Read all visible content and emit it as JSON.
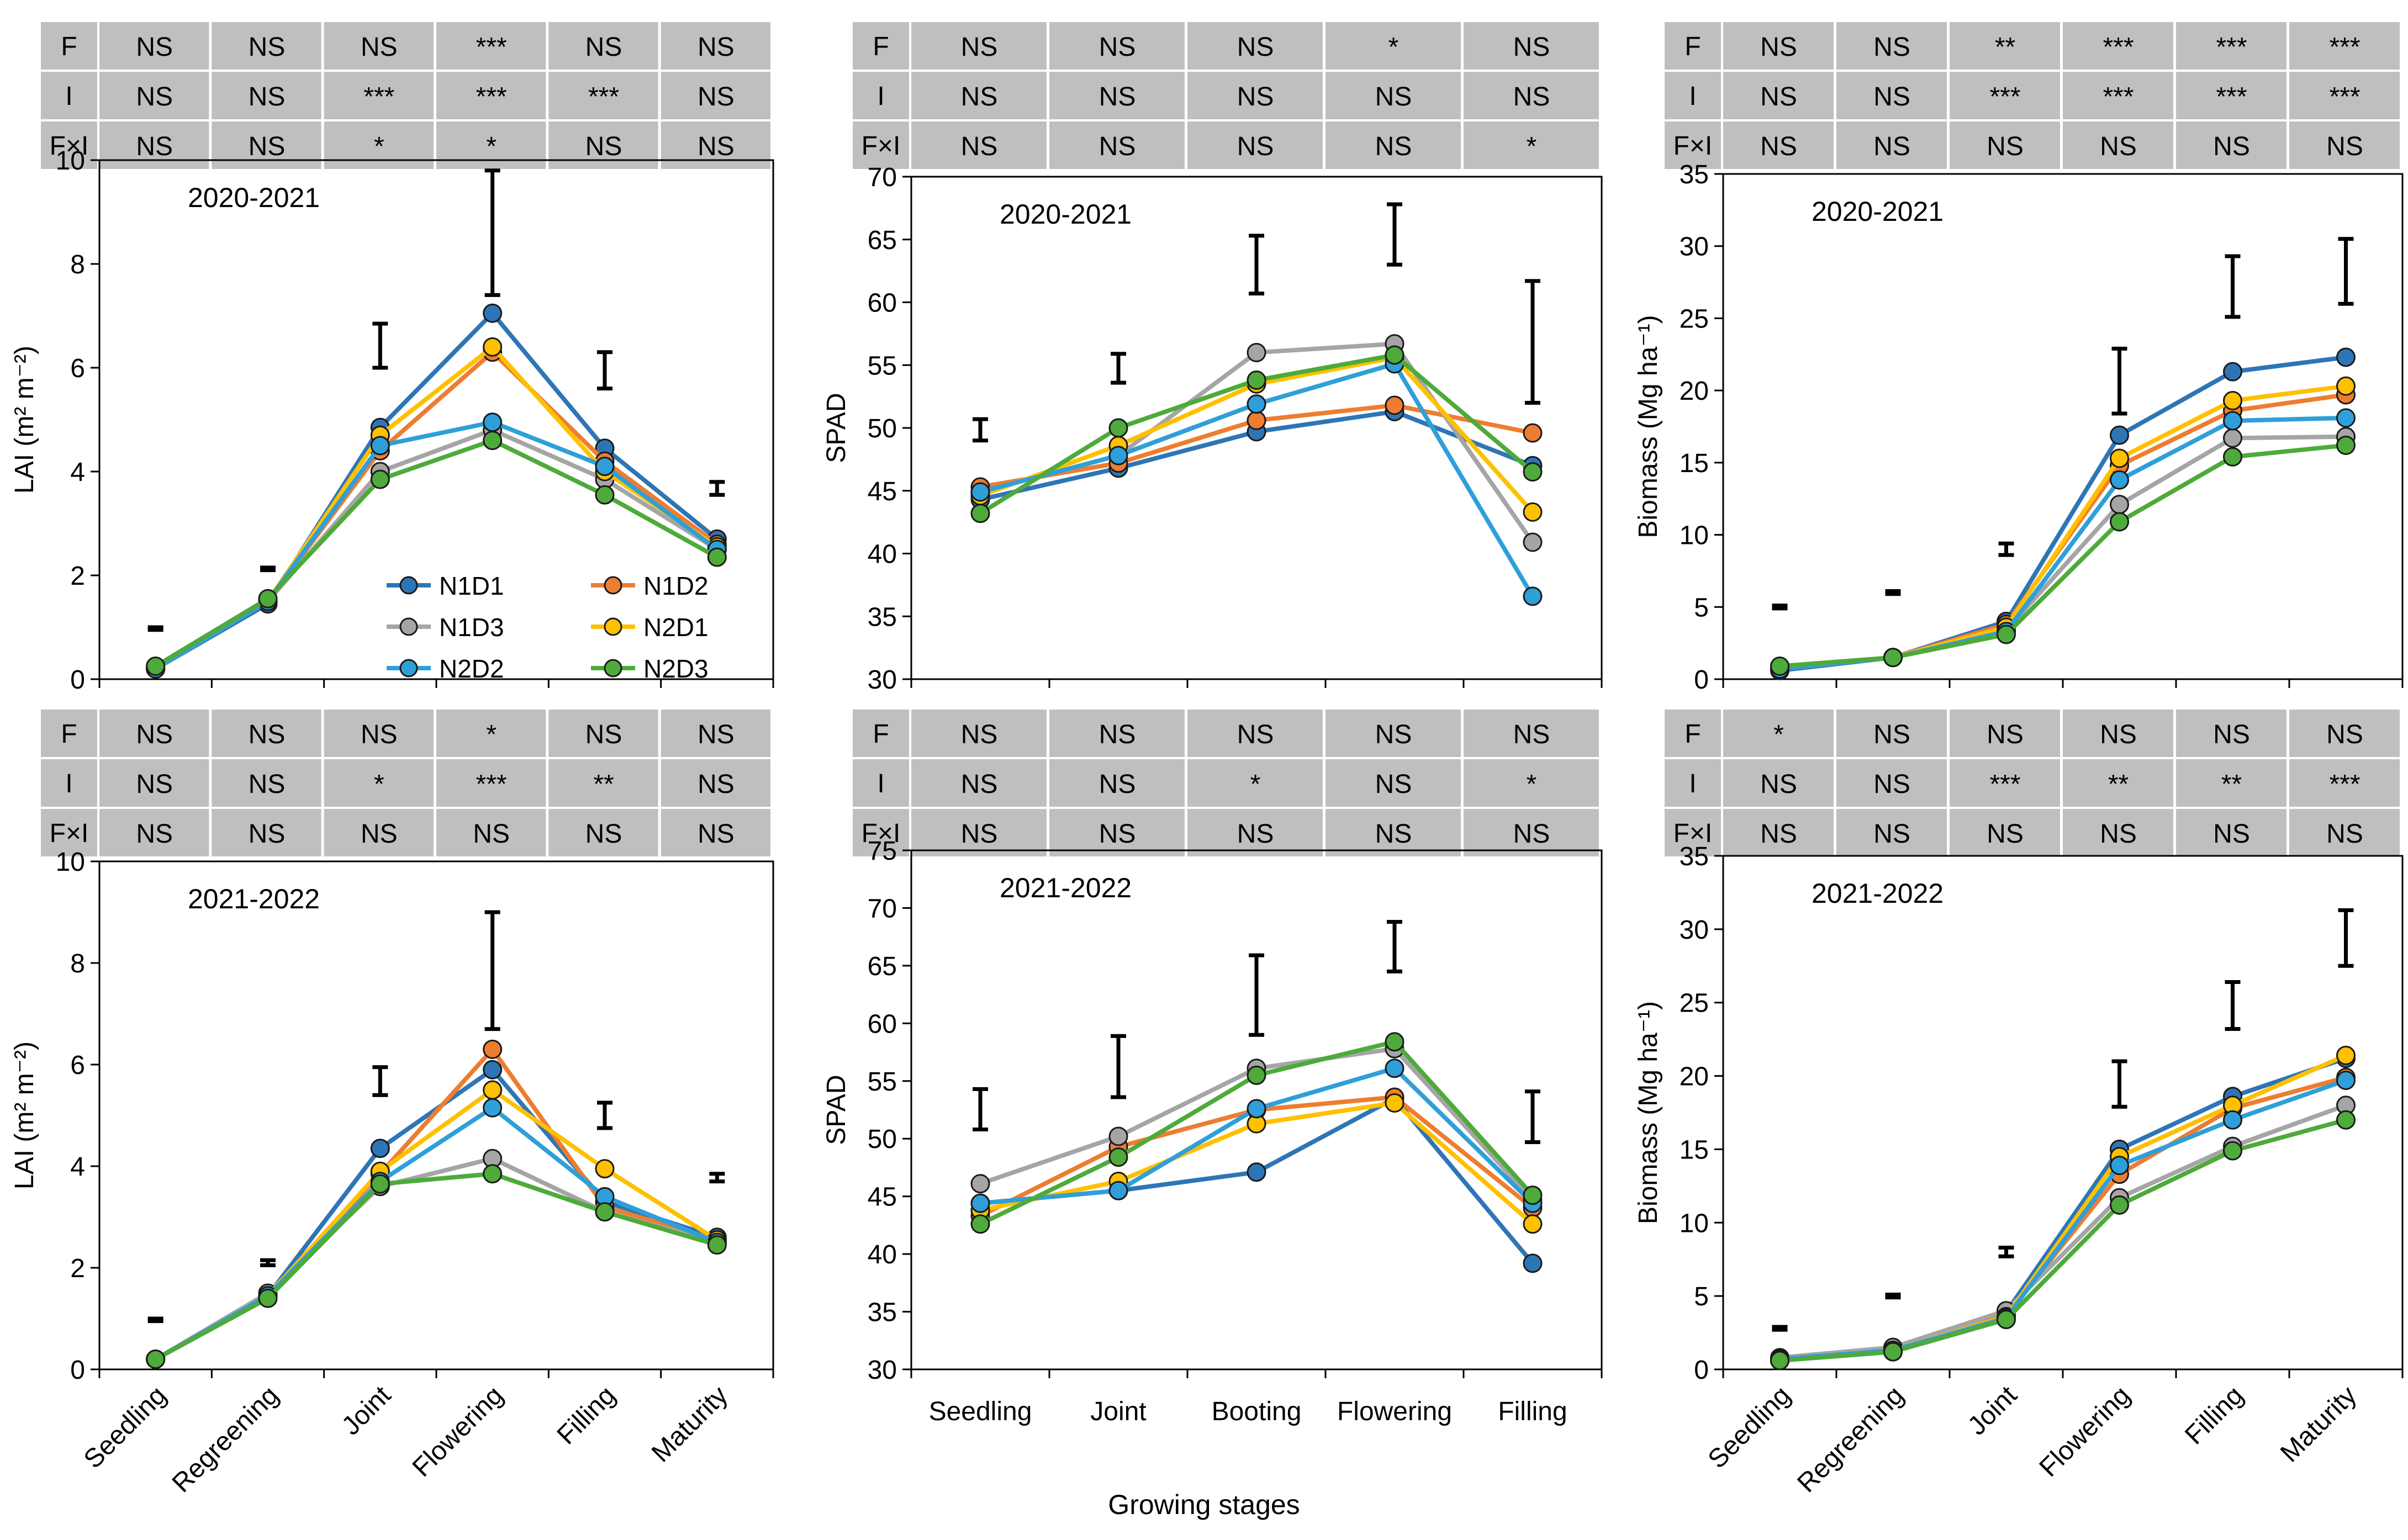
{
  "figure": {
    "shared_xlabel": "Growing stages",
    "colors": {
      "N1D1": "#2E75B6",
      "N1D2": "#ED7D31",
      "N1D3": "#A5A5A5",
      "N2D1": "#FFC000",
      "N2D2": "#2F9FD9",
      "N2D3": "#4EAA3A",
      "table_bg": "#BFBFBF",
      "axis": "#000000"
    },
    "legend": [
      "N1D1",
      "N1D2",
      "N1D3",
      "N2D1",
      "N2D2",
      "N2D3"
    ]
  },
  "chart_data": [
    {
      "id": "lai-2020",
      "type": "line",
      "title": "2020-2021",
      "ylabel": "LAI (m² m⁻²)",
      "ylim": [
        0,
        10
      ],
      "yticks": [
        0,
        2,
        4,
        6,
        8,
        10
      ],
      "categories": [
        "Seedling",
        "Regreening",
        "Joint",
        "Flowering",
        "Filling",
        "Maturity"
      ],
      "show_xticklabels": false,
      "show_legend": true,
      "series": [
        {
          "name": "N1D1",
          "values": [
            0.2,
            1.45,
            4.85,
            7.05,
            4.45,
            2.7
          ]
        },
        {
          "name": "N1D2",
          "values": [
            0.2,
            1.5,
            4.4,
            6.3,
            4.2,
            2.6
          ]
        },
        {
          "name": "N1D3",
          "values": [
            0.2,
            1.5,
            4.0,
            4.8,
            3.85,
            2.5
          ]
        },
        {
          "name": "N2D1",
          "values": [
            0.2,
            1.5,
            4.7,
            6.4,
            4.0,
            2.55
          ]
        },
        {
          "name": "N2D2",
          "values": [
            0.2,
            1.5,
            4.5,
            4.95,
            4.1,
            2.5
          ]
        },
        {
          "name": "N2D3",
          "values": [
            0.25,
            1.55,
            3.85,
            4.6,
            3.55,
            2.35
          ]
        }
      ],
      "error_bars": [
        {
          "index": 0,
          "low": 0.95,
          "high": 1.0
        },
        {
          "index": 1,
          "low": 2.1,
          "high": 2.15
        },
        {
          "index": 2,
          "low": 6.0,
          "high": 6.85
        },
        {
          "index": 3,
          "low": 7.4,
          "high": 9.8
        },
        {
          "index": 4,
          "low": 5.6,
          "high": 6.3
        },
        {
          "index": 5,
          "low": 3.55,
          "high": 3.8
        }
      ],
      "table": {
        "rows": [
          {
            "label": "F",
            "cells": [
              "NS",
              "NS",
              "NS",
              "***",
              "NS",
              "NS"
            ]
          },
          {
            "label": "I",
            "cells": [
              "NS",
              "NS",
              "***",
              "***",
              "***",
              "NS"
            ]
          },
          {
            "label": "F×I",
            "cells": [
              "NS",
              "NS",
              "*",
              "*",
              "NS",
              "NS"
            ]
          }
        ]
      }
    },
    {
      "id": "spad-2020",
      "type": "line",
      "title": "2020-2021",
      "ylabel": "SPAD",
      "ylim": [
        30,
        70
      ],
      "yticks": [
        30,
        35,
        40,
        45,
        50,
        55,
        60,
        65,
        70
      ],
      "categories": [
        "Seedling",
        "Joint",
        "Booting",
        "Flowering",
        "Filling"
      ],
      "show_xticklabels": false,
      "show_legend": false,
      "series": [
        {
          "name": "N1D1",
          "values": [
            44.3,
            46.8,
            49.7,
            51.3,
            47.0
          ]
        },
        {
          "name": "N1D2",
          "values": [
            45.3,
            47.2,
            50.6,
            51.8,
            49.6
          ]
        },
        {
          "name": "N1D3",
          "values": [
            44.9,
            47.8,
            56.0,
            56.7,
            40.9
          ]
        },
        {
          "name": "N2D1",
          "values": [
            44.6,
            48.6,
            53.5,
            55.6,
            43.3
          ]
        },
        {
          "name": "N2D2",
          "values": [
            44.9,
            47.8,
            51.9,
            55.1,
            36.6
          ]
        },
        {
          "name": "N2D3",
          "values": [
            43.2,
            50.0,
            53.8,
            55.8,
            46.5
          ]
        }
      ],
      "error_bars": [
        {
          "index": 0,
          "low": 49.0,
          "high": 50.7
        },
        {
          "index": 1,
          "low": 53.6,
          "high": 55.9
        },
        {
          "index": 2,
          "low": 60.7,
          "high": 65.3
        },
        {
          "index": 3,
          "low": 63.0,
          "high": 67.8
        },
        {
          "index": 4,
          "low": 52.0,
          "high": 61.7
        }
      ],
      "table": {
        "rows": [
          {
            "label": "F",
            "cells": [
              "NS",
              "NS",
              "NS",
              "*",
              "NS"
            ]
          },
          {
            "label": "I",
            "cells": [
              "NS",
              "NS",
              "NS",
              "NS",
              "NS"
            ]
          },
          {
            "label": "F×I",
            "cells": [
              "NS",
              "NS",
              "NS",
              "NS",
              "*"
            ]
          }
        ]
      }
    },
    {
      "id": "biomass-2020",
      "type": "line",
      "title": "2020-2021",
      "ylabel": "Biomass (Mg ha⁻¹)",
      "ylim": [
        0,
        35
      ],
      "yticks": [
        0,
        5,
        10,
        15,
        20,
        25,
        30,
        35
      ],
      "categories": [
        "Seedling",
        "Regreening",
        "Joint",
        "Flowering",
        "Filling",
        "Maturity"
      ],
      "show_xticklabels": false,
      "show_legend": false,
      "series": [
        {
          "name": "N1D1",
          "values": [
            0.6,
            1.5,
            4.0,
            16.9,
            21.3,
            22.3
          ]
        },
        {
          "name": "N1D2",
          "values": [
            0.7,
            1.5,
            3.8,
            14.8,
            18.6,
            19.7
          ]
        },
        {
          "name": "N1D3",
          "values": [
            0.8,
            1.5,
            3.4,
            12.1,
            16.7,
            16.8
          ]
        },
        {
          "name": "N2D1",
          "values": [
            0.8,
            1.5,
            3.6,
            15.3,
            19.3,
            20.3
          ]
        },
        {
          "name": "N2D2",
          "values": [
            0.7,
            1.5,
            3.3,
            13.8,
            17.9,
            18.1
          ]
        },
        {
          "name": "N2D3",
          "values": [
            0.9,
            1.5,
            3.1,
            10.9,
            15.4,
            16.2
          ]
        }
      ],
      "error_bars": [
        {
          "index": 0,
          "low": 4.9,
          "high": 5.1
        },
        {
          "index": 1,
          "low": 5.9,
          "high": 6.1
        },
        {
          "index": 2,
          "low": 8.6,
          "high": 9.4
        },
        {
          "index": 3,
          "low": 18.4,
          "high": 22.9
        },
        {
          "index": 4,
          "low": 25.1,
          "high": 29.3
        },
        {
          "index": 5,
          "low": 26.0,
          "high": 30.5
        }
      ],
      "table": {
        "rows": [
          {
            "label": "F",
            "cells": [
              "NS",
              "NS",
              "**",
              "***",
              "***",
              "***"
            ]
          },
          {
            "label": "I",
            "cells": [
              "NS",
              "NS",
              "***",
              "***",
              "***",
              "***"
            ]
          },
          {
            "label": "F×I",
            "cells": [
              "NS",
              "NS",
              "NS",
              "NS",
              "NS",
              "NS"
            ]
          }
        ]
      }
    },
    {
      "id": "lai-2021",
      "type": "line",
      "title": "2021-2022",
      "ylabel": "LAI (m² m⁻²)",
      "ylim": [
        0,
        10
      ],
      "yticks": [
        0,
        2,
        4,
        6,
        8,
        10
      ],
      "categories": [
        "Seedling",
        "Regreening",
        "Joint",
        "Flowering",
        "Filling",
        "Maturity"
      ],
      "show_xticklabels": true,
      "show_legend": false,
      "series": [
        {
          "name": "N1D1",
          "values": [
            0.2,
            1.45,
            4.35,
            5.9,
            3.3,
            2.6
          ]
        },
        {
          "name": "N1D2",
          "values": [
            0.2,
            1.45,
            3.85,
            6.3,
            3.2,
            2.55
          ]
        },
        {
          "name": "N1D3",
          "values": [
            0.2,
            1.5,
            3.6,
            4.15,
            3.1,
            2.5
          ]
        },
        {
          "name": "N2D1",
          "values": [
            0.2,
            1.45,
            3.9,
            5.5,
            3.95,
            2.55
          ]
        },
        {
          "name": "N2D2",
          "values": [
            0.2,
            1.45,
            3.7,
            5.15,
            3.4,
            2.5
          ]
        },
        {
          "name": "N2D3",
          "values": [
            0.2,
            1.4,
            3.65,
            3.85,
            3.1,
            2.45
          ]
        }
      ],
      "error_bars": [
        {
          "index": 0,
          "low": 0.95,
          "high": 1.0
        },
        {
          "index": 1,
          "low": 2.05,
          "high": 2.15
        },
        {
          "index": 2,
          "low": 5.4,
          "high": 5.95
        },
        {
          "index": 3,
          "low": 6.7,
          "high": 9.0
        },
        {
          "index": 4,
          "low": 4.75,
          "high": 5.25
        },
        {
          "index": 5,
          "low": 3.7,
          "high": 3.85
        }
      ],
      "table": {
        "rows": [
          {
            "label": "F",
            "cells": [
              "NS",
              "NS",
              "NS",
              "*",
              "NS",
              "NS"
            ]
          },
          {
            "label": "I",
            "cells": [
              "NS",
              "NS",
              "*",
              "***",
              "**",
              "NS"
            ]
          },
          {
            "label": "F×I",
            "cells": [
              "NS",
              "NS",
              "NS",
              "NS",
              "NS",
              "NS"
            ]
          }
        ]
      }
    },
    {
      "id": "spad-2021",
      "type": "line",
      "title": "2021-2022",
      "ylabel": "SPAD",
      "ylim": [
        30,
        75
      ],
      "yticks": [
        30,
        35,
        40,
        45,
        50,
        55,
        60,
        65,
        70,
        75
      ],
      "categories": [
        "Seedling",
        "Joint",
        "Booting",
        "Flowering",
        "Filling"
      ],
      "show_xticklabels": true,
      "show_legend": false,
      "series": [
        {
          "name": "N1D1",
          "values": [
            44.4,
            45.5,
            47.1,
            53.5,
            39.2
          ]
        },
        {
          "name": "N1D2",
          "values": [
            43.3,
            49.3,
            52.5,
            53.6,
            44.0
          ]
        },
        {
          "name": "N1D3",
          "values": [
            46.1,
            50.2,
            56.1,
            57.8,
            44.7
          ]
        },
        {
          "name": "N2D1",
          "values": [
            43.8,
            46.3,
            51.3,
            53.1,
            42.6
          ]
        },
        {
          "name": "N2D2",
          "values": [
            44.4,
            45.5,
            52.6,
            56.1,
            44.4
          ]
        },
        {
          "name": "N2D3",
          "values": [
            42.6,
            48.4,
            55.5,
            58.4,
            45.1
          ]
        }
      ],
      "error_bars": [
        {
          "index": 0,
          "low": 50.8,
          "high": 54.3
        },
        {
          "index": 1,
          "low": 53.6,
          "high": 58.9
        },
        {
          "index": 2,
          "low": 59.0,
          "high": 65.9
        },
        {
          "index": 3,
          "low": 64.5,
          "high": 68.8
        },
        {
          "index": 4,
          "low": 49.7,
          "high": 54.1
        }
      ],
      "table": {
        "rows": [
          {
            "label": "F",
            "cells": [
              "NS",
              "NS",
              "NS",
              "NS",
              "NS"
            ]
          },
          {
            "label": "I",
            "cells": [
              "NS",
              "NS",
              "*",
              "NS",
              "*"
            ]
          },
          {
            "label": "F×I",
            "cells": [
              "NS",
              "NS",
              "NS",
              "NS",
              "NS"
            ]
          }
        ]
      }
    },
    {
      "id": "biomass-2021",
      "type": "line",
      "title": "2021-2022",
      "ylabel": "Biomass (Mg ha⁻¹)",
      "ylim": [
        0,
        35
      ],
      "yticks": [
        0,
        5,
        10,
        15,
        20,
        25,
        30,
        35
      ],
      "categories": [
        "Seedling",
        "Regreening",
        "Joint",
        "Flowering",
        "Filling",
        "Maturity"
      ],
      "show_xticklabels": true,
      "show_legend": false,
      "series": [
        {
          "name": "N1D1",
          "values": [
            0.6,
            1.2,
            3.9,
            15.0,
            18.6,
            21.2
          ]
        },
        {
          "name": "N1D2",
          "values": [
            0.7,
            1.3,
            3.7,
            13.3,
            17.8,
            19.9
          ]
        },
        {
          "name": "N1D3",
          "values": [
            0.8,
            1.5,
            4.0,
            11.7,
            15.2,
            18.0
          ]
        },
        {
          "name": "N2D1",
          "values": [
            0.7,
            1.3,
            3.6,
            14.5,
            18.0,
            21.4
          ]
        },
        {
          "name": "N2D2",
          "values": [
            0.7,
            1.3,
            3.5,
            13.9,
            17.0,
            19.7
          ]
        },
        {
          "name": "N2D3",
          "values": [
            0.6,
            1.2,
            3.4,
            11.2,
            14.9,
            17.0
          ]
        }
      ],
      "error_bars": [
        {
          "index": 0,
          "low": 2.7,
          "high": 2.9
        },
        {
          "index": 1,
          "low": 4.9,
          "high": 5.1
        },
        {
          "index": 2,
          "low": 7.7,
          "high": 8.3
        },
        {
          "index": 3,
          "low": 17.9,
          "high": 21.0
        },
        {
          "index": 4,
          "low": 23.2,
          "high": 26.4
        },
        {
          "index": 5,
          "low": 27.5,
          "high": 31.3
        }
      ],
      "table": {
        "rows": [
          {
            "label": "F",
            "cells": [
              "*",
              "NS",
              "NS",
              "NS",
              "NS",
              "NS"
            ]
          },
          {
            "label": "I",
            "cells": [
              "NS",
              "NS",
              "***",
              "**",
              "**",
              "***"
            ]
          },
          {
            "label": "F×I",
            "cells": [
              "NS",
              "NS",
              "NS",
              "NS",
              "NS",
              "NS"
            ]
          }
        ]
      }
    }
  ]
}
